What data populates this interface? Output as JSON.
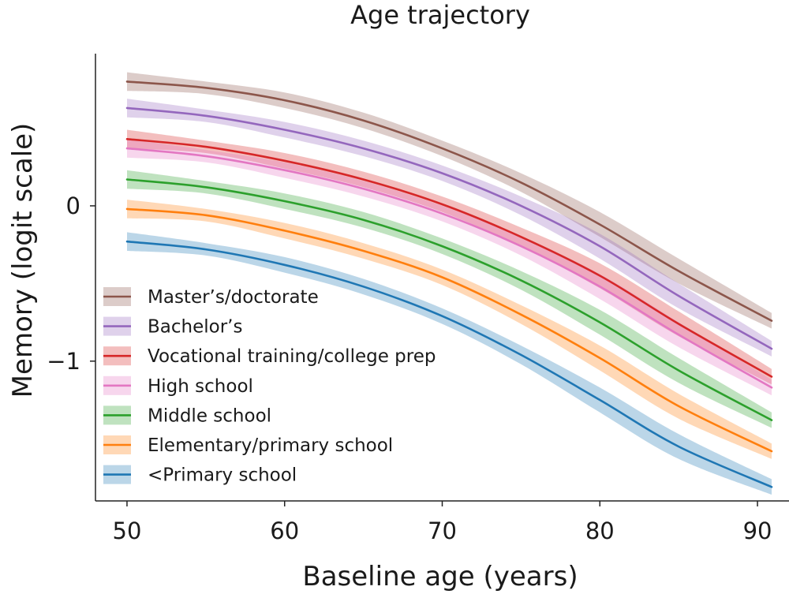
{
  "chart_data": {
    "type": "line",
    "title": "Age trajectory",
    "xlabel": "Baseline age (years)",
    "ylabel": "Memory (logit scale)",
    "xlim": [
      48,
      92
    ],
    "ylim": [
      -1.9,
      0.98
    ],
    "xticks": [
      50,
      60,
      70,
      80,
      90
    ],
    "xtick_labels": [
      "50",
      "60",
      "70",
      "80",
      "90"
    ],
    "yticks": [
      0,
      -1
    ],
    "ytick_labels": [
      "0",
      "−1"
    ],
    "legend_position": "bottom-left",
    "grid": false,
    "x": [
      50,
      55,
      60,
      65,
      70,
      75,
      80,
      85,
      90.9
    ],
    "series": [
      {
        "name": "Master’s/doctorate",
        "color": "#8c564b",
        "values": [
          0.8,
          0.76,
          0.68,
          0.55,
          0.37,
          0.15,
          -0.12,
          -0.42,
          -0.74
        ],
        "ci_half_width": [
          0.06,
          0.04,
          0.05,
          0.05,
          0.05,
          0.06,
          0.08,
          0.08,
          0.05
        ]
      },
      {
        "name": "Bachelor’s",
        "color": "#9467bd",
        "values": [
          0.63,
          0.58,
          0.49,
          0.37,
          0.21,
          0.0,
          -0.26,
          -0.58,
          -0.92
        ],
        "ci_half_width": [
          0.06,
          0.04,
          0.05,
          0.05,
          0.05,
          0.06,
          0.08,
          0.08,
          0.05
        ]
      },
      {
        "name": "Vocational training/college prep",
        "color": "#d62728",
        "values": [
          0.43,
          0.38,
          0.29,
          0.17,
          0.01,
          -0.2,
          -0.45,
          -0.76,
          -1.1
        ],
        "ci_half_width": [
          0.06,
          0.04,
          0.05,
          0.05,
          0.05,
          0.06,
          0.08,
          0.08,
          0.05
        ]
      },
      {
        "name": "High school",
        "color": "#e377c2",
        "values": [
          0.37,
          0.32,
          0.23,
          0.11,
          -0.05,
          -0.26,
          -0.52,
          -0.83,
          -1.17
        ],
        "ci_half_width": [
          0.06,
          0.04,
          0.05,
          0.05,
          0.05,
          0.06,
          0.08,
          0.08,
          0.05
        ]
      },
      {
        "name": "Middle school",
        "color": "#2ca02c",
        "values": [
          0.17,
          0.12,
          0.03,
          -0.09,
          -0.26,
          -0.48,
          -0.75,
          -1.06,
          -1.38
        ],
        "ci_half_width": [
          0.06,
          0.04,
          0.05,
          0.05,
          0.05,
          0.06,
          0.08,
          0.08,
          0.05
        ]
      },
      {
        "name": "Elementary/primary school",
        "color": "#ff7f0e",
        "values": [
          -0.02,
          -0.06,
          -0.16,
          -0.29,
          -0.46,
          -0.7,
          -0.98,
          -1.29,
          -1.58
        ],
        "ci_half_width": [
          0.06,
          0.04,
          0.05,
          0.05,
          0.05,
          0.06,
          0.08,
          0.08,
          0.05
        ]
      },
      {
        "name": "<Primary school",
        "color": "#1f77b4",
        "values": [
          -0.23,
          -0.28,
          -0.38,
          -0.52,
          -0.71,
          -0.96,
          -1.25,
          -1.55,
          -1.81
        ],
        "ci_half_width": [
          0.06,
          0.04,
          0.05,
          0.05,
          0.05,
          0.06,
          0.08,
          0.08,
          0.05
        ]
      }
    ]
  }
}
